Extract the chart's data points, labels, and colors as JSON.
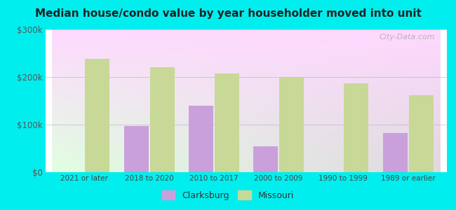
{
  "title": "Median house/condo value by year householder moved into unit",
  "categories": [
    "2021 or later",
    "2018 to 2020",
    "2010 to 2017",
    "2000 to 2009",
    "1990 to 1999",
    "1989 or earlier"
  ],
  "clarksburg": [
    null,
    97000,
    140000,
    55000,
    null,
    82000
  ],
  "missouri": [
    238000,
    220000,
    207000,
    198000,
    187000,
    162000
  ],
  "clarksburg_color": "#c9a0dc",
  "missouri_color": "#c8d896",
  "background_color": "#00eeee",
  "ylim": [
    0,
    300000
  ],
  "yticks": [
    0,
    100000,
    200000,
    300000
  ],
  "ytick_labels": [
    "$0",
    "$100k",
    "$200k",
    "$300k"
  ],
  "watermark": "City-Data.com",
  "legend_clarksburg": "Clarksburg",
  "legend_missouri": "Missouri",
  "bar_width": 0.38,
  "bar_gap": 0.02
}
